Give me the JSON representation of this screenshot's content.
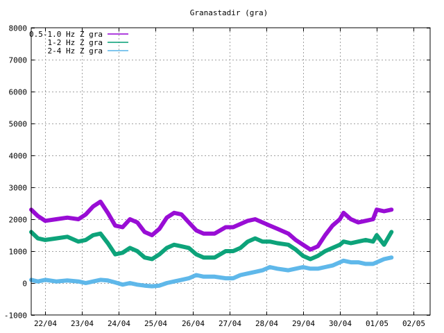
{
  "chart_data": {
    "type": "line",
    "title": "Granastadir (gra)",
    "xlabel": "",
    "ylabel": "",
    "ylim": [
      -1000,
      8000
    ],
    "yticks": [
      -1000,
      0,
      1000,
      2000,
      3000,
      4000,
      5000,
      6000,
      7000,
      8000
    ],
    "xlim_days": [
      21.62,
      32.45
    ],
    "xticks": [
      {
        "label": "22/04",
        "day": 22
      },
      {
        "label": "23/04",
        "day": 23
      },
      {
        "label": "24/04",
        "day": 24
      },
      {
        "label": "25/04",
        "day": 25
      },
      {
        "label": "26/04",
        "day": 26
      },
      {
        "label": "27/04",
        "day": 27
      },
      {
        "label": "28/04",
        "day": 28
      },
      {
        "label": "29/04",
        "day": 29
      },
      {
        "label": "30/04",
        "day": 30
      },
      {
        "label": "01/05",
        "day": 31
      },
      {
        "label": "02/05",
        "day": 32
      }
    ],
    "grid": true,
    "legend_position": "top-left",
    "series": [
      {
        "name": "0.5-1.0 Hz Z gra",
        "color": "#9400d3",
        "points": [
          [
            21.62,
            2300
          ],
          [
            21.8,
            2100
          ],
          [
            22.0,
            1950
          ],
          [
            22.3,
            2000
          ],
          [
            22.6,
            2050
          ],
          [
            22.9,
            2000
          ],
          [
            23.1,
            2150
          ],
          [
            23.3,
            2400
          ],
          [
            23.5,
            2550
          ],
          [
            23.7,
            2200
          ],
          [
            23.9,
            1800
          ],
          [
            24.1,
            1750
          ],
          [
            24.3,
            2000
          ],
          [
            24.5,
            1900
          ],
          [
            24.7,
            1600
          ],
          [
            24.9,
            1500
          ],
          [
            25.1,
            1700
          ],
          [
            25.3,
            2050
          ],
          [
            25.5,
            2200
          ],
          [
            25.7,
            2150
          ],
          [
            25.9,
            1900
          ],
          [
            26.1,
            1650
          ],
          [
            26.3,
            1550
          ],
          [
            26.6,
            1550
          ],
          [
            26.9,
            1750
          ],
          [
            27.1,
            1750
          ],
          [
            27.3,
            1850
          ],
          [
            27.5,
            1950
          ],
          [
            27.7,
            2000
          ],
          [
            27.9,
            1900
          ],
          [
            28.1,
            1800
          ],
          [
            28.3,
            1700
          ],
          [
            28.6,
            1550
          ],
          [
            28.8,
            1350
          ],
          [
            29.0,
            1200
          ],
          [
            29.2,
            1050
          ],
          [
            29.4,
            1150
          ],
          [
            29.6,
            1500
          ],
          [
            29.8,
            1800
          ],
          [
            30.0,
            2000
          ],
          [
            30.1,
            2200
          ],
          [
            30.3,
            2000
          ],
          [
            30.5,
            1900
          ],
          [
            30.7,
            1950
          ],
          [
            30.9,
            2000
          ],
          [
            31.0,
            2300
          ],
          [
            31.2,
            2250
          ],
          [
            31.4,
            2300
          ]
        ]
      },
      {
        "name": "1-2 Hz Z gra",
        "color": "#009e73",
        "points": [
          [
            21.62,
            1600
          ],
          [
            21.8,
            1400
          ],
          [
            22.0,
            1350
          ],
          [
            22.3,
            1400
          ],
          [
            22.6,
            1450
          ],
          [
            22.9,
            1300
          ],
          [
            23.1,
            1350
          ],
          [
            23.3,
            1500
          ],
          [
            23.5,
            1550
          ],
          [
            23.7,
            1250
          ],
          [
            23.9,
            900
          ],
          [
            24.1,
            950
          ],
          [
            24.3,
            1100
          ],
          [
            24.5,
            1000
          ],
          [
            24.7,
            800
          ],
          [
            24.9,
            750
          ],
          [
            25.1,
            900
          ],
          [
            25.3,
            1100
          ],
          [
            25.5,
            1200
          ],
          [
            25.7,
            1150
          ],
          [
            25.9,
            1100
          ],
          [
            26.1,
            900
          ],
          [
            26.3,
            800
          ],
          [
            26.6,
            800
          ],
          [
            26.9,
            1000
          ],
          [
            27.1,
            1000
          ],
          [
            27.3,
            1100
          ],
          [
            27.5,
            1300
          ],
          [
            27.7,
            1400
          ],
          [
            27.9,
            1300
          ],
          [
            28.1,
            1300
          ],
          [
            28.3,
            1250
          ],
          [
            28.6,
            1200
          ],
          [
            28.8,
            1050
          ],
          [
            29.0,
            850
          ],
          [
            29.2,
            750
          ],
          [
            29.4,
            850
          ],
          [
            29.6,
            1000
          ],
          [
            29.8,
            1100
          ],
          [
            30.0,
            1200
          ],
          [
            30.1,
            1300
          ],
          [
            30.3,
            1250
          ],
          [
            30.5,
            1300
          ],
          [
            30.7,
            1350
          ],
          [
            30.9,
            1300
          ],
          [
            31.0,
            1500
          ],
          [
            31.2,
            1200
          ],
          [
            31.4,
            1600
          ]
        ]
      },
      {
        "name": "2-4 Hz Z gra",
        "color": "#56b4e9",
        "points": [
          [
            21.62,
            100
          ],
          [
            21.8,
            50
          ],
          [
            22.0,
            100
          ],
          [
            22.3,
            50
          ],
          [
            22.6,
            80
          ],
          [
            22.9,
            50
          ],
          [
            23.1,
            0
          ],
          [
            23.3,
            50
          ],
          [
            23.5,
            100
          ],
          [
            23.7,
            80
          ],
          [
            23.9,
            20
          ],
          [
            24.1,
            -50
          ],
          [
            24.3,
            0
          ],
          [
            24.5,
            -50
          ],
          [
            24.7,
            -80
          ],
          [
            24.9,
            -100
          ],
          [
            25.1,
            -80
          ],
          [
            25.3,
            0
          ],
          [
            25.5,
            50
          ],
          [
            25.7,
            100
          ],
          [
            25.9,
            150
          ],
          [
            26.1,
            250
          ],
          [
            26.3,
            200
          ],
          [
            26.6,
            200
          ],
          [
            26.9,
            150
          ],
          [
            27.1,
            150
          ],
          [
            27.3,
            250
          ],
          [
            27.5,
            300
          ],
          [
            27.7,
            350
          ],
          [
            27.9,
            400
          ],
          [
            28.1,
            500
          ],
          [
            28.3,
            450
          ],
          [
            28.6,
            400
          ],
          [
            28.8,
            450
          ],
          [
            29.0,
            500
          ],
          [
            29.2,
            450
          ],
          [
            29.4,
            450
          ],
          [
            29.6,
            500
          ],
          [
            29.8,
            550
          ],
          [
            30.0,
            650
          ],
          [
            30.1,
            700
          ],
          [
            30.3,
            650
          ],
          [
            30.5,
            650
          ],
          [
            30.7,
            600
          ],
          [
            30.9,
            600
          ],
          [
            31.0,
            650
          ],
          [
            31.2,
            750
          ],
          [
            31.4,
            800
          ]
        ]
      }
    ]
  }
}
